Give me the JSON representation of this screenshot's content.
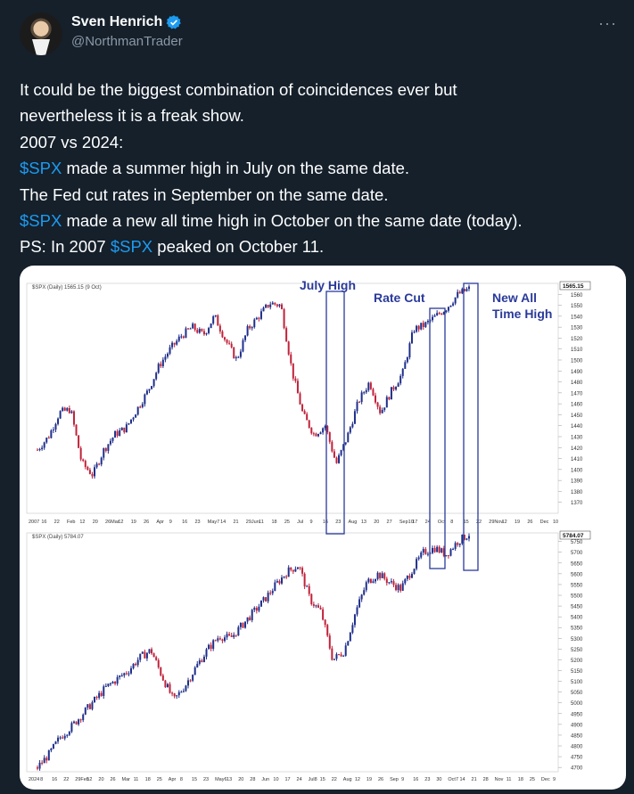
{
  "author": {
    "display_name": "Sven Henrich",
    "handle": "@NorthmanTrader",
    "verified_icon": "verified-badge-icon",
    "more_icon": "more-horizontal-icon",
    "more_label": "···"
  },
  "tweet": {
    "lines": [
      [
        {
          "text": "It could be the biggest combination of coincidences ever but"
        }
      ],
      [
        {
          "text": "nevertheless it is a freak show."
        }
      ],
      [
        {
          "text": "2007 vs 2024:"
        }
      ],
      [
        {
          "text": "$SPX",
          "tag": true
        },
        {
          "text": " made a summer high in July on the same date."
        }
      ],
      [
        {
          "text": "The Fed cut rates in September on the same date."
        }
      ],
      [
        {
          "text": "$SPX",
          "tag": true
        },
        {
          "text": " made a new all time high in October on the same date (today)."
        }
      ],
      [
        {
          "text": "PS: In 2007 "
        },
        {
          "text": "$SPX",
          "tag": true
        },
        {
          "text": " peaked on October 11."
        }
      ]
    ]
  },
  "colors": {
    "accent": "#1d9bf0",
    "muted": "#8b98a5",
    "background": "#15202b",
    "up": "#1f2f8a",
    "down": "#c0223a",
    "annotation": "#2a3a9a"
  },
  "media": {
    "annotations": {
      "july_high": "July High",
      "rate_cut": "Rate Cut",
      "new_all_time_high_1": "New All",
      "new_all_time_high_2": "Time High"
    }
  },
  "chart_data": [
    {
      "type": "candlestick",
      "title": "$SPX (Daily) 1565.15 (9 Oct)",
      "last_value_label": "1565.15",
      "ylim": [
        1360,
        1570
      ],
      "yticks": [
        1370,
        1380,
        1390,
        1400,
        1410,
        1420,
        1430,
        1440,
        1450,
        1460,
        1470,
        1480,
        1490,
        1500,
        1510,
        1520,
        1530,
        1540,
        1550,
        1560
      ],
      "xtick_labels": [
        "2007",
        "16",
        "22",
        "Feb",
        "12",
        "20",
        "26Mar",
        "12",
        "19",
        "26",
        "Apr",
        "9",
        "16",
        "23",
        "May7",
        "14",
        "21",
        "29Jun",
        "11",
        "18",
        "25",
        "Jul",
        "9",
        "16",
        "23",
        "Aug",
        "13",
        "20",
        "27",
        "Sep10",
        "17",
        "24",
        "Oct",
        "8",
        "15",
        "22",
        "29Nov",
        "12",
        "19",
        "26",
        "Dec",
        "10"
      ],
      "approx_path": [
        1418,
        1430,
        1452,
        1455,
        1406,
        1395,
        1418,
        1432,
        1438,
        1455,
        1472,
        1495,
        1510,
        1522,
        1530,
        1523,
        1540,
        1518,
        1500,
        1528,
        1540,
        1552,
        1550,
        1490,
        1450,
        1432,
        1440,
        1405,
        1430,
        1462,
        1480,
        1452,
        1472,
        1488,
        1528,
        1532,
        1540,
        1548,
        1560,
        1565
      ]
    },
    {
      "type": "candlestick",
      "title": "$SPX (Daily) 5784.07",
      "last_value_label": "5784.07",
      "ylim": [
        4680,
        5790
      ],
      "yticks": [
        4700,
        4750,
        4800,
        4850,
        4900,
        4950,
        5000,
        5050,
        5100,
        5150,
        5200,
        5250,
        5300,
        5350,
        5400,
        5450,
        5500,
        5550,
        5600,
        5650,
        5700,
        5750
      ],
      "xtick_labels": [
        "2024",
        "8",
        "16",
        "22",
        "29Feb",
        "12",
        "20",
        "26",
        "Mar",
        "11",
        "18",
        "25",
        "Apr",
        "8",
        "15",
        "23",
        "May6",
        "13",
        "20",
        "28",
        "Jun",
        "10",
        "17",
        "24",
        "Jul8",
        "15",
        "22",
        "Aug",
        "12",
        "19",
        "26",
        "Sep",
        "9",
        "16",
        "23",
        "30",
        "Oct7",
        "14",
        "21",
        "28",
        "Nov",
        "11",
        "18",
        "25",
        "Dec",
        "9"
      ],
      "approx_path": [
        4700,
        4760,
        4840,
        4890,
        4950,
        5010,
        5070,
        5110,
        5150,
        5210,
        5245,
        5120,
        5010,
        5080,
        5170,
        5250,
        5310,
        5300,
        5360,
        5420,
        5480,
        5550,
        5610,
        5640,
        5480,
        5420,
        5200,
        5240,
        5420,
        5560,
        5600,
        5560,
        5530,
        5620,
        5700,
        5720,
        5690,
        5750,
        5784
      ]
    }
  ]
}
